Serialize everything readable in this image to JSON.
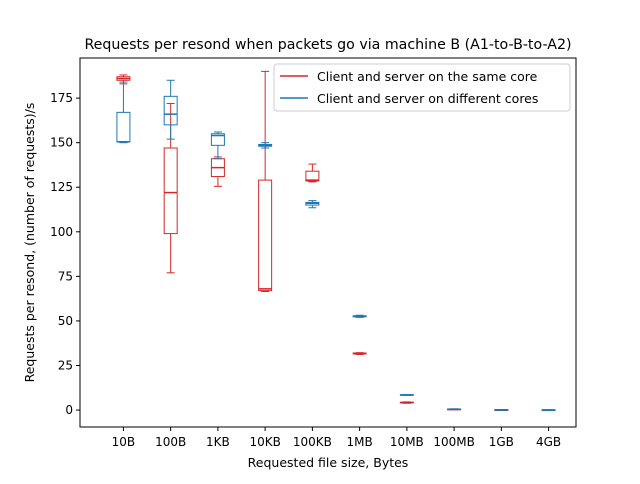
{
  "chart_data": {
    "type": "box",
    "title": "Requests per resond when packets go via machine B (A1-to-B-to-A2)",
    "xlabel": "Requested file size, Bytes",
    "ylabel": "Requests per resond, (number of requests)/s",
    "categories": [
      "10B",
      "100B",
      "1KB",
      "10KB",
      "100KB",
      "1MB",
      "10MB",
      "100MB",
      "1GB",
      "4GB"
    ],
    "yticks": [
      0,
      25,
      50,
      75,
      100,
      125,
      150,
      175
    ],
    "ylim": [
      -9.5,
      197.5
    ],
    "grid": false,
    "legend_position": "upper-right",
    "series": [
      {
        "name": "Client and server on the same core",
        "color": "#d62728",
        "boxes": [
          {
            "whislo": 183.0,
            "q1": 185.0,
            "med": 186.0,
            "q3": 187.0,
            "whishi": 188.0
          },
          {
            "whislo": 77.0,
            "q1": 99.0,
            "med": 122.0,
            "q3": 147.0,
            "whishi": 172.0
          },
          {
            "whislo": 125.5,
            "q1": 131.0,
            "med": 136.0,
            "q3": 141.0,
            "whishi": 142.0
          },
          {
            "whislo": 66.5,
            "q1": 67.0,
            "med": 68.0,
            "q3": 129.0,
            "whishi": 190.0
          },
          {
            "whislo": 128.0,
            "q1": 128.5,
            "med": 129.0,
            "q3": 134.0,
            "whishi": 138.0
          },
          {
            "whislo": 31.2,
            "q1": 31.5,
            "med": 31.7,
            "q3": 32.0,
            "whishi": 32.2
          },
          {
            "whislo": 3.8,
            "q1": 4.0,
            "med": 4.2,
            "q3": 4.4,
            "whishi": 4.6
          },
          {
            "whislo": 0.2,
            "q1": 0.3,
            "med": 0.4,
            "q3": 0.5,
            "whishi": 0.6
          },
          {
            "whislo": 0.0,
            "q1": 0.0,
            "med": 0.05,
            "q3": 0.1,
            "whishi": 0.1
          },
          {
            "whislo": 0.0,
            "q1": 0.0,
            "med": 0.02,
            "q3": 0.05,
            "whishi": 0.05
          }
        ]
      },
      {
        "name": "Client and server on different cores",
        "color": "#1f77b4",
        "boxes": [
          {
            "whislo": 150.0,
            "q1": 150.5,
            "med": 150.5,
            "q3": 167.0,
            "whishi": 184.0
          },
          {
            "whislo": 152.0,
            "q1": 160.0,
            "med": 166.0,
            "q3": 176.0,
            "whishi": 185.0
          },
          {
            "whislo": 141.0,
            "q1": 148.5,
            "med": 154.0,
            "q3": 155.0,
            "whishi": 156.0
          },
          {
            "whislo": 147.0,
            "q1": 148.0,
            "med": 148.5,
            "q3": 149.0,
            "whishi": 150.0
          },
          {
            "whislo": 113.5,
            "q1": 115.0,
            "med": 116.0,
            "q3": 116.5,
            "whishi": 117.5
          },
          {
            "whislo": 52.0,
            "q1": 52.3,
            "med": 52.6,
            "q3": 52.9,
            "whishi": 53.2
          },
          {
            "whislo": 8.3,
            "q1": 8.4,
            "med": 8.5,
            "q3": 8.6,
            "whishi": 8.7
          },
          {
            "whislo": 0.3,
            "q1": 0.4,
            "med": 0.5,
            "q3": 0.6,
            "whishi": 0.7
          },
          {
            "whislo": 0.1,
            "q1": 0.1,
            "med": 0.15,
            "q3": 0.2,
            "whishi": 0.2
          },
          {
            "whislo": 0.0,
            "q1": 0.0,
            "med": 0.05,
            "q3": 0.1,
            "whishi": 0.1
          }
        ]
      }
    ]
  }
}
